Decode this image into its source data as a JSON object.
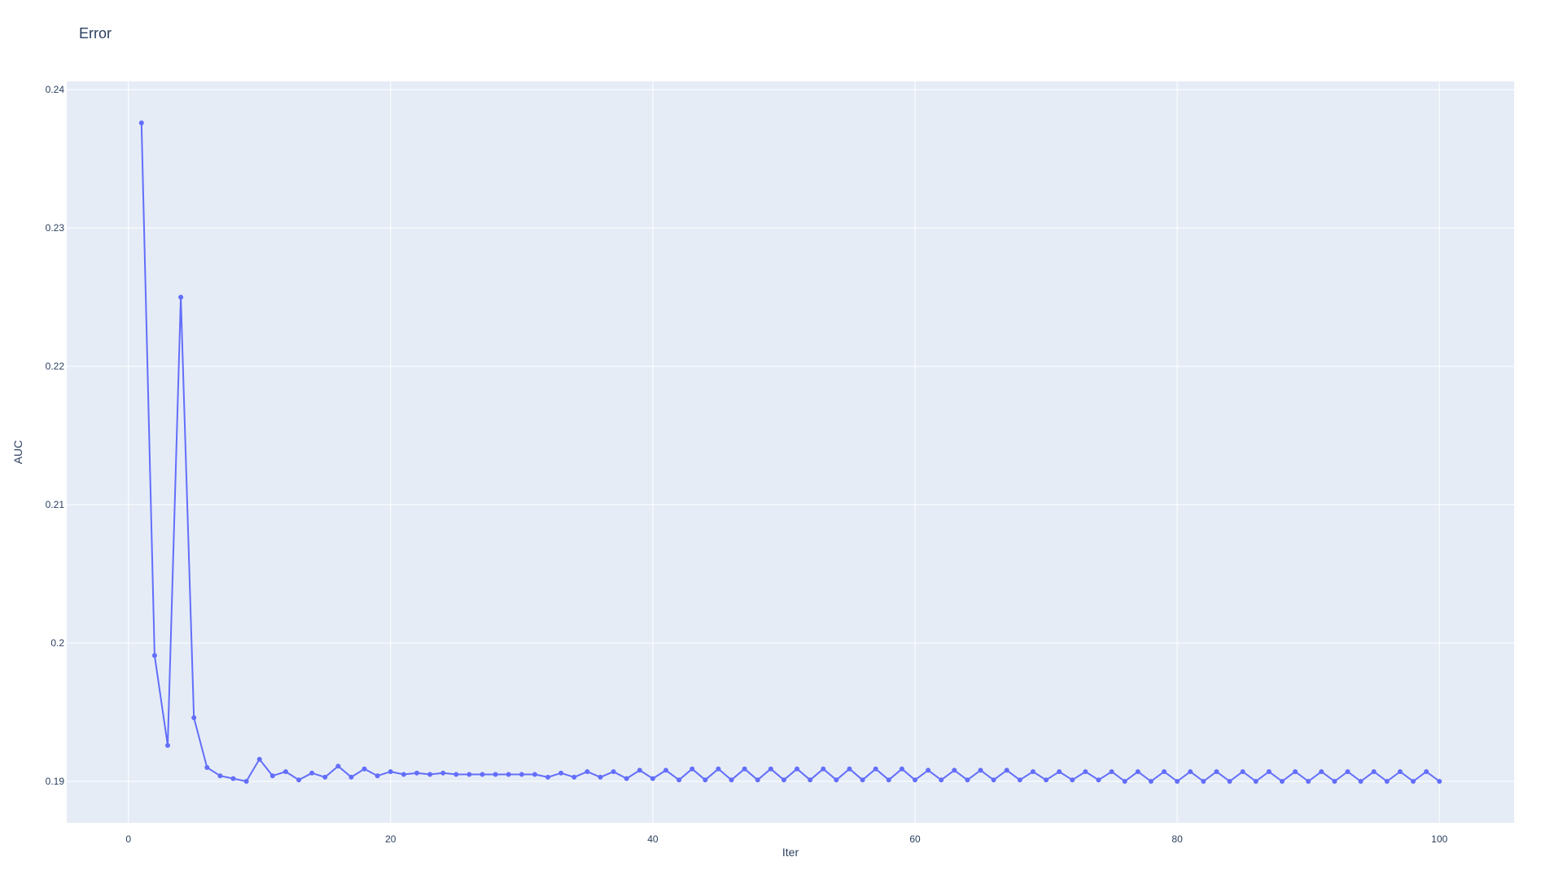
{
  "chart_data": {
    "type": "line",
    "title": "Error",
    "xlabel": "Iter",
    "ylabel": "AUC",
    "xlim": [
      -4.7,
      105.7
    ],
    "ylim": [
      0.187,
      0.2406
    ],
    "x_ticks": [
      0,
      20,
      40,
      60,
      80,
      100
    ],
    "x_tick_labels": [
      "0",
      "20",
      "40",
      "60",
      "80",
      "100"
    ],
    "y_ticks": [
      0.19,
      0.2,
      0.21,
      0.22,
      0.23,
      0.24
    ],
    "y_tick_labels": [
      "0.19",
      "0.2",
      "0.21",
      "0.22",
      "0.23",
      "0.24"
    ],
    "grid": true,
    "colors": {
      "line": "#636efa",
      "plot_bg": "#e5ecf6",
      "grid": "#ffffff",
      "text": "#2a3f5f"
    },
    "series": [
      {
        "x": [
          1,
          2,
          3,
          4,
          5,
          6,
          7,
          8,
          9,
          10,
          11,
          12,
          13,
          14,
          15,
          16,
          17,
          18,
          19,
          20,
          21,
          22,
          23,
          24,
          25,
          26,
          27,
          28,
          29,
          30,
          31,
          32,
          33,
          34,
          35,
          36,
          37,
          38,
          39,
          40,
          41,
          42,
          43,
          44,
          45,
          46,
          47,
          48,
          49,
          50,
          51,
          52,
          53,
          54,
          55,
          56,
          57,
          58,
          59,
          60,
          61,
          62,
          63,
          64,
          65,
          66,
          67,
          68,
          69,
          70,
          71,
          72,
          73,
          74,
          75,
          76,
          77,
          78,
          79,
          80,
          81,
          82,
          83,
          84,
          85,
          86,
          87,
          88,
          89,
          90,
          91,
          92,
          93,
          94,
          95,
          96,
          97,
          98,
          99,
          100
        ],
        "values": [
          0.2376,
          0.1991,
          0.1926,
          0.225,
          0.1946,
          0.191,
          0.1904,
          0.1902,
          0.19,
          0.1916,
          0.1904,
          0.1907,
          0.1901,
          0.1906,
          0.1903,
          0.1911,
          0.1903,
          0.1909,
          0.1904,
          0.1907,
          0.1905,
          0.1906,
          0.1905,
          0.1906,
          0.1905,
          0.1905,
          0.1905,
          0.1905,
          0.1905,
          0.1905,
          0.1905,
          0.1903,
          0.1906,
          0.1903,
          0.1907,
          0.1903,
          0.1907,
          0.1902,
          0.1908,
          0.1902,
          0.1908,
          0.1901,
          0.1909,
          0.1901,
          0.1909,
          0.1901,
          0.1909,
          0.1901,
          0.1909,
          0.1901,
          0.1909,
          0.1901,
          0.1909,
          0.1901,
          0.1909,
          0.1901,
          0.1909,
          0.1901,
          0.1909,
          0.1901,
          0.1908,
          0.1901,
          0.1908,
          0.1901,
          0.1908,
          0.1901,
          0.1908,
          0.1901,
          0.1907,
          0.1901,
          0.1907,
          0.1901,
          0.1907,
          0.1901,
          0.1907,
          0.19,
          0.1907,
          0.19,
          0.1907,
          0.19,
          0.1907,
          0.19,
          0.1907,
          0.19,
          0.1907,
          0.19,
          0.1907,
          0.19,
          0.1907,
          0.19,
          0.1907,
          0.19,
          0.1907,
          0.19,
          0.1907,
          0.19,
          0.1907,
          0.19,
          0.1907,
          0.19
        ]
      }
    ]
  }
}
